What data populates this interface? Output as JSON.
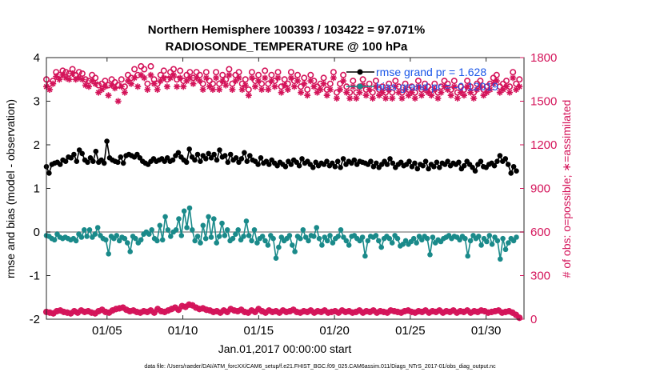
{
  "chart_data": {
    "type": "line",
    "title_line1": "Northern Hemisphere 100393 / 103422 = 97.071%",
    "title_line2": "RADIOSONDE_TEMPERATURE @ 100 hPa",
    "xlabel": "Jan.01,2017 00:00:00 start",
    "ylabel_left": "rmse and bias (model - observation)",
    "ylabel_right": "# of obs: o=possible; ∗=assimilated",
    "xlim": [
      1,
      32.5
    ],
    "ylim_left": [
      -2,
      4
    ],
    "ylim_right": [
      0,
      1800
    ],
    "x_ticks": [
      5,
      10,
      15,
      20,
      25,
      30
    ],
    "x_tick_labels": [
      "01/05",
      "01/10",
      "01/15",
      "01/20",
      "01/25",
      "01/30"
    ],
    "y_left_ticks": [
      "-2",
      "-1",
      "0",
      "1",
      "2",
      "3",
      "4"
    ],
    "y_right_ticks": [
      "0",
      "300",
      "600",
      "900",
      "1200",
      "1500",
      "1800"
    ],
    "footer": "data file: /Users/raeder/DAI/ATM_forcXX/CAM6_setup/f.e21.FHIST_BGC.f09_025.CAM6assim.011/Diags_NTrS_2017-01/obs_diag_output.nc",
    "colors": {
      "rmse": "#000000",
      "bias": "#1a8a8a",
      "obs": "#d4145a",
      "zero_line": "#b0b0b0",
      "legend_text": "#1a56e8"
    },
    "series": [
      {
        "name": "rmse",
        "legend": "rmse grand pr = 1.628",
        "axis": "left",
        "marker": "filled-circle",
        "values": [
          1.5,
          1.35,
          1.55,
          1.58,
          1.6,
          1.55,
          1.65,
          1.62,
          1.72,
          1.7,
          1.78,
          1.62,
          1.88,
          1.8,
          1.65,
          1.6,
          1.7,
          1.62,
          1.85,
          1.6,
          1.65,
          1.58,
          2.08,
          1.7,
          1.65,
          1.62,
          1.6,
          1.72,
          1.58,
          1.75,
          1.78,
          1.75,
          1.72,
          1.78,
          1.7,
          1.62,
          1.58,
          1.55,
          1.62,
          1.68,
          1.62,
          1.65,
          1.68,
          1.62,
          1.7,
          1.62,
          1.65,
          1.75,
          1.82,
          1.72,
          1.65,
          1.6,
          1.9,
          1.72,
          1.65,
          1.78,
          1.62,
          1.75,
          1.68,
          1.8,
          1.7,
          1.78,
          1.65,
          1.88,
          1.72,
          1.75,
          1.6,
          1.78,
          1.65,
          1.7,
          1.6,
          1.68,
          1.82,
          1.62,
          1.75,
          1.65,
          1.62,
          1.55,
          1.7,
          1.58,
          1.62,
          1.55,
          1.65,
          1.58,
          1.52,
          1.6,
          1.55,
          1.5,
          1.62,
          1.55,
          1.65,
          1.6,
          1.52,
          1.68,
          1.58,
          1.62,
          1.55,
          1.48,
          1.6,
          1.52,
          1.58,
          1.55,
          1.62,
          1.52,
          1.58,
          1.5,
          1.62,
          1.48,
          1.68,
          1.55,
          1.62,
          1.58,
          1.65,
          1.55,
          1.62,
          1.6,
          1.58,
          1.55,
          1.62,
          1.5,
          1.58,
          1.48,
          1.55,
          1.62,
          1.55,
          1.68,
          1.58,
          1.48,
          1.55,
          1.6,
          1.52,
          1.55,
          1.62,
          1.5,
          1.58,
          1.45,
          1.55,
          1.52,
          1.62,
          1.45,
          1.55,
          1.5,
          1.6,
          1.48,
          1.58,
          1.55,
          1.62,
          1.52,
          1.58,
          1.55,
          1.6,
          1.45,
          1.52,
          1.62,
          1.55,
          1.48,
          1.4,
          1.55,
          1.62,
          1.5,
          1.48,
          1.55,
          1.58,
          1.52,
          1.62,
          1.75,
          1.62,
          1.68,
          1.55,
          1.35,
          1.5,
          1.4
        ]
      },
      {
        "name": "bias",
        "legend": "bias grand pr = -0.12019",
        "axis": "left",
        "marker": "filled-circle",
        "values": [
          -0.08,
          -0.1,
          -0.15,
          -0.18,
          -0.05,
          -0.12,
          -0.15,
          -0.12,
          -0.15,
          -0.18,
          -0.15,
          -0.2,
          -0.05,
          -0.12,
          0.05,
          -0.1,
          0.05,
          -0.12,
          -0.05,
          0.1,
          -0.08,
          -0.15,
          -0.18,
          -0.5,
          -0.1,
          -0.15,
          -0.08,
          -0.2,
          -0.12,
          -0.15,
          -0.25,
          -0.45,
          -0.1,
          -0.15,
          -0.25,
          -0.18,
          -0.05,
          0.0,
          -0.05,
          0.05,
          -0.15,
          -0.2,
          0.15,
          -0.18,
          0.35,
          0.05,
          -0.1,
          0.0,
          0.05,
          0.3,
          -0.08,
          0.48,
          0.1,
          0.55,
          0.05,
          -0.2,
          -0.1,
          -0.25,
          0.15,
          -0.15,
          0.35,
          -0.12,
          0.3,
          -0.25,
          -0.1,
          0.2,
          -0.08,
          0.05,
          -0.2,
          -0.15,
          -0.05,
          0.05,
          -0.18,
          -0.1,
          0.25,
          -0.08,
          -0.2,
          0.05,
          -0.25,
          -0.15,
          -0.1,
          -0.2,
          -0.3,
          -0.08,
          -0.15,
          -0.6,
          -0.35,
          -0.12,
          -0.2,
          -0.15,
          -0.08,
          -0.3,
          -0.45,
          -0.1,
          -0.15,
          0.05,
          -0.12,
          -0.2,
          -0.08,
          -0.1,
          0.1,
          -0.15,
          -0.3,
          -0.12,
          -0.2,
          -0.08,
          -0.25,
          -0.15,
          -0.1,
          0.05,
          -0.12,
          -0.2,
          -0.3,
          -0.1,
          -0.08,
          -0.15,
          -0.2,
          -0.12,
          -0.55,
          -0.2,
          -0.1,
          -0.12,
          -0.08,
          -0.2,
          -0.35,
          -0.15,
          -0.1,
          -0.15,
          -0.25,
          -0.08,
          -0.15,
          -0.32,
          -0.28,
          -0.2,
          -0.28,
          -0.22,
          -0.15,
          -0.25,
          -0.1,
          -0.18,
          -0.1,
          -0.15,
          -0.52,
          -0.12,
          -0.25,
          -0.18,
          -0.22,
          -0.15,
          -0.12,
          -0.08,
          -0.15,
          -0.1,
          -0.12,
          -0.18,
          -0.1,
          -0.15,
          -0.55,
          -0.2,
          -0.08,
          -0.15,
          -0.1,
          -0.3,
          -0.15,
          -0.22,
          -0.08,
          -0.28,
          -0.12,
          -0.2,
          -0.62,
          -0.15,
          -0.4,
          -0.25,
          -0.15,
          -0.2,
          -0.12
        ]
      },
      {
        "name": "obs_possible",
        "axis": "right",
        "marker": "open-circle",
        "values": [
          1650,
          1620,
          1640,
          1700,
          1680,
          1710,
          1700,
          1690,
          1720,
          1680,
          1700,
          1690,
          1650,
          1640,
          1680,
          1660,
          1610,
          1620,
          1640,
          1610,
          1650,
          1630,
          1610,
          1650,
          1600,
          1680,
          1660,
          1720,
          1680,
          1740,
          1720,
          1620,
          1740,
          1650,
          1620,
          1680,
          1710,
          1650,
          1700,
          1720,
          1650,
          1710,
          1640,
          1680,
          1700,
          1660,
          1700,
          1680,
          1620,
          1700,
          1640,
          1620,
          1700,
          1620,
          1680,
          1650,
          1720,
          1620,
          1680,
          1700,
          1620,
          1650,
          1580,
          1700,
          1640,
          1680,
          1620,
          1710,
          1620,
          1680,
          1640,
          1700,
          1600,
          1650,
          1620,
          1700,
          1640,
          1680,
          1600,
          1660,
          1580,
          1680,
          1640,
          1600,
          1620,
          1660,
          1580,
          1620,
          1700,
          1560,
          1620,
          1680,
          1600,
          1560,
          1640,
          1560,
          1600,
          1650,
          1580,
          1620,
          1560,
          1640,
          1580,
          1600,
          1560,
          1620,
          1560,
          1640,
          1600,
          1560,
          1620,
          1580,
          1600,
          1560,
          1640,
          1580,
          1620,
          1600,
          1580,
          1620,
          1560,
          1600,
          1640,
          1620,
          1580,
          1640,
          1560,
          1600,
          1580,
          1640,
          1600,
          1560,
          1620,
          1640,
          1580,
          1600,
          1620,
          1660,
          1680,
          1600,
          1620,
          1640,
          1600,
          1700,
          1620,
          1650
        ]
      },
      {
        "name": "obs_assimilated",
        "axis": "right",
        "marker": "asterisk",
        "values": [
          1600,
          1580,
          1620,
          1670,
          1650,
          1680,
          1660,
          1650,
          1690,
          1650,
          1660,
          1650,
          1610,
          1600,
          1640,
          1620,
          1560,
          1580,
          1600,
          1540,
          1610,
          1590,
          1500,
          1600,
          1560,
          1640,
          1620,
          1660,
          1600,
          1680,
          1660,
          1580,
          1680,
          1620,
          1580,
          1640,
          1660,
          1600,
          1660,
          1680,
          1600,
          1660,
          1600,
          1640,
          1660,
          1620,
          1660,
          1640,
          1580,
          1660,
          1600,
          1580,
          1660,
          1580,
          1640,
          1610,
          1680,
          1580,
          1640,
          1660,
          1580,
          1610,
          1540,
          1660,
          1600,
          1640,
          1580,
          1660,
          1580,
          1640,
          1600,
          1660,
          1560,
          1610,
          1580,
          1660,
          1600,
          1640,
          1560,
          1620,
          1540,
          1640,
          1600,
          1560,
          1580,
          1620,
          1540,
          1580,
          1660,
          1520,
          1580,
          1640,
          1560,
          1520,
          1600,
          1520,
          1560,
          1610,
          1540,
          1580,
          1520,
          1600,
          1540,
          1560,
          1520,
          1580,
          1520,
          1600,
          1560,
          1520,
          1580,
          1540,
          1560,
          1520,
          1600,
          1540,
          1580,
          1560,
          1540,
          1580,
          1520,
          1560,
          1600,
          1580,
          1540,
          1600,
          1520,
          1560,
          1540,
          1600,
          1560,
          1520,
          1580,
          1600,
          1540,
          1560,
          1580,
          1620,
          1640,
          1560,
          1580,
          1600,
          1560,
          1660,
          1580,
          1600
        ]
      },
      {
        "name": "obs_bottom",
        "axis": "right",
        "marker": "open-circle",
        "values": [
          50,
          45,
          40,
          55,
          60,
          50,
          45,
          40,
          55,
          45,
          60,
          50,
          55,
          45,
          40,
          55,
          65,
          50,
          45,
          60,
          70,
          75,
          80,
          65,
          55,
          60,
          50,
          45,
          55,
          50,
          60,
          45,
          70,
          55,
          50,
          60,
          70,
          80,
          65,
          90,
          85,
          100,
          95,
          80,
          70,
          75,
          65,
          60,
          50,
          55,
          45,
          60,
          50,
          70,
          60,
          55,
          65,
          50,
          45,
          60,
          50,
          70,
          55,
          45,
          60,
          50,
          55,
          45,
          60,
          50,
          55,
          65,
          50,
          45,
          55,
          50,
          60,
          45,
          55,
          50,
          60,
          45,
          50,
          55,
          45,
          60,
          50,
          55,
          45,
          50,
          60,
          45,
          55,
          50,
          60,
          45,
          55,
          50,
          45,
          60,
          55,
          50,
          45,
          55,
          60,
          50,
          45,
          55,
          50,
          60,
          45,
          55,
          50,
          60,
          45,
          55,
          50,
          60,
          45,
          55,
          50,
          60,
          45,
          55,
          50,
          60,
          55,
          45,
          50,
          55,
          60,
          45,
          50,
          55,
          45,
          30,
          10
        ]
      },
      {
        "name": "obs_bottom_assimilated",
        "axis": "right",
        "marker": "asterisk",
        "values": [
          50,
          45,
          40,
          55,
          60,
          50,
          45,
          40,
          55,
          45,
          60,
          50,
          55,
          45,
          40,
          55,
          65,
          50,
          45,
          60,
          70,
          75,
          80,
          65,
          55,
          60,
          50,
          45,
          55,
          50,
          60,
          45,
          70,
          55,
          50,
          60,
          70,
          80,
          65,
          90,
          85,
          100,
          95,
          80,
          70,
          75,
          65,
          60,
          50,
          55,
          45,
          60,
          50,
          70,
          60,
          55,
          65,
          50,
          45,
          60,
          50,
          70,
          55,
          45,
          60,
          50,
          55,
          45,
          60,
          50,
          55,
          65,
          50,
          45,
          55,
          50,
          60,
          45,
          55,
          50,
          60,
          45,
          50,
          55,
          45,
          60,
          50,
          55,
          45,
          50,
          60,
          45,
          55,
          50,
          60,
          45,
          55,
          50,
          45,
          60,
          55,
          50,
          45,
          55,
          60,
          50,
          45,
          55,
          50,
          60,
          45,
          55,
          50,
          60,
          45,
          55,
          50,
          60,
          45,
          55,
          50,
          60,
          45,
          55,
          50,
          60,
          55,
          45,
          50,
          55,
          60,
          45,
          50,
          55,
          45,
          30,
          10
        ]
      }
    ]
  }
}
